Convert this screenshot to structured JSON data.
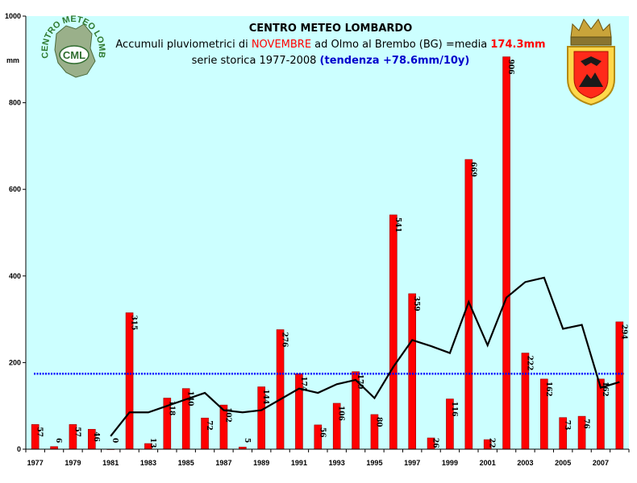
{
  "header": {
    "title": "CENTRO METEO LOMBARDO",
    "line2_prefix": "Accumuli pluviometrici di ",
    "line2_month": "NOVEMBRE",
    "line2_middle": " ad Olmo al Brembo (BG) =media ",
    "line2_mean": "174.3mm",
    "line3_prefix": "serie storica 1977-2008 ",
    "line3_trend": "(tendenza +78.6mm/10y)"
  },
  "logos": {
    "cml_text": "CML",
    "cml_ring_text": "CENTRO METEO LOMBARDO"
  },
  "chart_data": {
    "type": "bar",
    "categories": [
      "1977",
      "1978",
      "1979",
      "1980",
      "1981",
      "1982",
      "1983",
      "1984",
      "1985",
      "1986",
      "1987",
      "1988",
      "1989",
      "1990",
      "1991",
      "1992",
      "1993",
      "1994",
      "1995",
      "1996",
      "1997",
      "1998",
      "1999",
      "2000",
      "2001",
      "2002",
      "2003",
      "2004",
      "2005",
      "2006",
      "2007",
      "2008"
    ],
    "values": [
      57,
      6,
      57,
      46,
      0,
      315,
      13,
      118,
      140,
      72,
      102,
      5,
      144,
      276,
      174,
      56,
      106,
      179,
      80,
      541,
      359,
      26,
      116,
      669,
      22,
      906,
      222,
      162,
      73,
      76,
      162,
      294
    ],
    "data_labels": [
      "57",
      "6",
      "57",
      "46",
      "0",
      "315",
      "13",
      "118",
      "140",
      "72",
      "102",
      "5",
      "144",
      "276",
      "174",
      "56",
      "106",
      "179",
      "80",
      "541",
      "359",
      "26",
      "116",
      "669",
      "22",
      "906",
      "222",
      "162",
      "73",
      "76",
      "162",
      "294"
    ],
    "x_tick_labels": [
      "1977",
      "1979",
      "1981",
      "1983",
      "1985",
      "1987",
      "1989",
      "1991",
      "1993",
      "1995",
      "1997",
      "1999",
      "2001",
      "2003",
      "2005",
      "2007"
    ],
    "ylabel": "mm",
    "ylim": [
      0,
      1000
    ],
    "y_ticks": [
      "0",
      "200",
      "400",
      "600",
      "800",
      "1000"
    ],
    "mean": 174.3,
    "moving_average": {
      "x_start_index": 4,
      "values": [
        30,
        85,
        85,
        100,
        115,
        130,
        90,
        85,
        90,
        115,
        140,
        130,
        150,
        160,
        118,
        190,
        252,
        238,
        222,
        340,
        240,
        350,
        386,
        396,
        278,
        287,
        142,
        155
      ]
    },
    "grid": false,
    "colors": {
      "bar": "#ff0000",
      "bar_edge": "#990000",
      "plot_bg": "#ccffff",
      "mean_line": "#0000ff",
      "moving_avg": "#000000"
    }
  }
}
